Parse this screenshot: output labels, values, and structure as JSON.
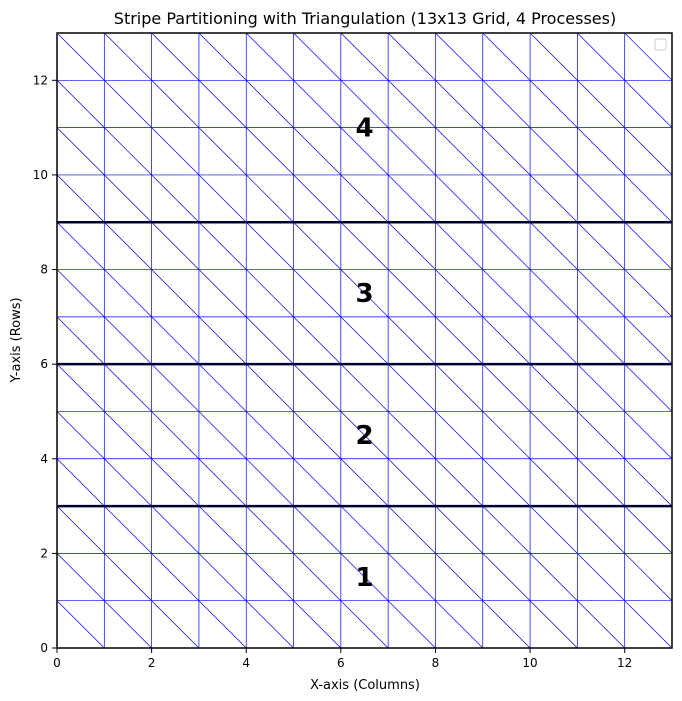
{
  "chart_data": {
    "type": "mesh",
    "title": "Stripe Partitioning with Triangulation (13x13 Grid, 4 Processes)",
    "xlabel": "X-axis (Columns)",
    "ylabel": "Y-axis (Rows)",
    "xlim": [
      0,
      13
    ],
    "ylim": [
      0,
      13
    ],
    "xticks": [
      0,
      2,
      4,
      6,
      8,
      10,
      12
    ],
    "yticks": [
      0,
      2,
      4,
      6,
      8,
      10,
      12
    ],
    "grid_size": 13,
    "mesh_color": "#0000ff",
    "boundary_color": "#000033",
    "stripe_boundaries": [
      3,
      6,
      9
    ],
    "regions": [
      {
        "label": "1",
        "x": 6.5,
        "y": 1.5
      },
      {
        "label": "2",
        "x": 6.5,
        "y": 4.5
      },
      {
        "label": "3",
        "x": 6.5,
        "y": 7.5
      },
      {
        "label": "4",
        "x": 6.5,
        "y": 11
      }
    ],
    "legend": "top-right (empty)"
  }
}
